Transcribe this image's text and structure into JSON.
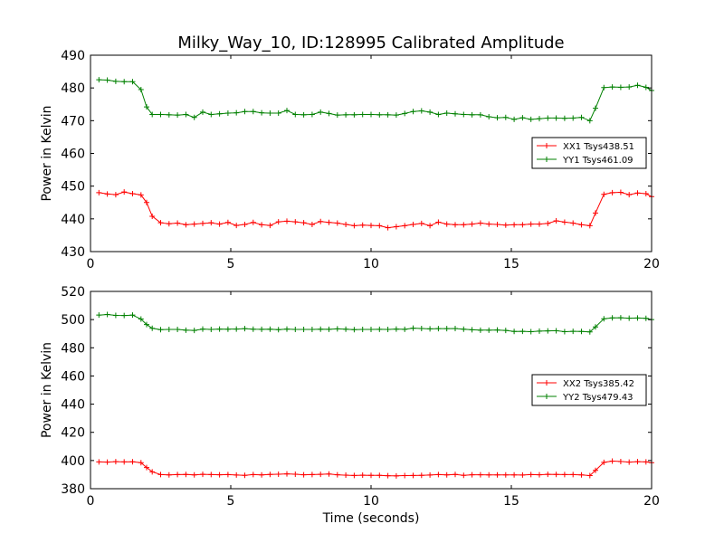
{
  "title": "Milky_Way_10, ID:128995 Calibrated Amplitude",
  "chart_data": [
    {
      "type": "line",
      "title": "Milky_Way_10, ID:128995 Calibrated Amplitude",
      "xlabel": "",
      "ylabel": "Power in Kelvin",
      "xlim": [
        0,
        20
      ],
      "ylim": [
        430,
        490
      ],
      "xticks": [
        "0",
        "5",
        "10",
        "15",
        "20"
      ],
      "yticks": [
        "430",
        "440",
        "450",
        "460",
        "470",
        "480",
        "490"
      ],
      "legend_position": "center-right",
      "grid": false,
      "series": [
        {
          "name": "XX1 Tsys438.51",
          "color": "#ff0000",
          "x": [
            0.3,
            0.6,
            0.9,
            1.2,
            1.5,
            1.8,
            2.0,
            2.2,
            2.5,
            2.8,
            3.1,
            3.4,
            3.7,
            4.0,
            4.3,
            4.6,
            4.9,
            5.2,
            5.5,
            5.8,
            6.1,
            6.4,
            6.7,
            7.0,
            7.3,
            7.6,
            7.9,
            8.2,
            8.5,
            8.8,
            9.1,
            9.4,
            9.7,
            10.0,
            10.3,
            10.6,
            10.9,
            11.2,
            11.5,
            11.8,
            12.1,
            12.4,
            12.7,
            13.0,
            13.3,
            13.6,
            13.9,
            14.2,
            14.5,
            14.8,
            15.1,
            15.4,
            15.7,
            16.0,
            16.3,
            16.6,
            16.9,
            17.2,
            17.5,
            17.8,
            18.0,
            18.3,
            18.6,
            18.9,
            19.2,
            19.5,
            19.8,
            20.0
          ],
          "y": [
            448.0,
            447.6,
            447.4,
            448.2,
            447.7,
            447.3,
            445.0,
            440.8,
            438.8,
            438.5,
            438.7,
            438.2,
            438.4,
            438.6,
            438.8,
            438.4,
            438.9,
            438.0,
            438.3,
            438.9,
            438.2,
            438.0,
            439.1,
            439.3,
            439.1,
            438.8,
            438.3,
            439.2,
            438.9,
            438.7,
            438.3,
            437.9,
            438.1,
            438.0,
            437.9,
            437.3,
            437.6,
            437.9,
            438.3,
            438.6,
            437.9,
            439.0,
            438.4,
            438.2,
            438.2,
            438.4,
            438.7,
            438.4,
            438.3,
            438.1,
            438.2,
            438.2,
            438.4,
            438.4,
            438.6,
            439.4,
            439.0,
            438.7,
            438.2,
            437.9,
            441.8,
            447.5,
            448.0,
            448.1,
            447.4,
            447.9,
            447.7,
            446.8
          ]
        },
        {
          "name": "YY1 Tsys461.09",
          "color": "#008000",
          "x": [
            0.3,
            0.6,
            0.9,
            1.2,
            1.5,
            1.8,
            2.0,
            2.2,
            2.5,
            2.8,
            3.1,
            3.4,
            3.7,
            4.0,
            4.3,
            4.6,
            4.9,
            5.2,
            5.5,
            5.8,
            6.1,
            6.4,
            6.7,
            7.0,
            7.3,
            7.6,
            7.9,
            8.2,
            8.5,
            8.8,
            9.1,
            9.4,
            9.7,
            10.0,
            10.3,
            10.6,
            10.9,
            11.2,
            11.5,
            11.8,
            12.1,
            12.4,
            12.7,
            13.0,
            13.3,
            13.6,
            13.9,
            14.2,
            14.5,
            14.8,
            15.1,
            15.4,
            15.7,
            16.0,
            16.3,
            16.6,
            16.9,
            17.2,
            17.5,
            17.8,
            18.0,
            18.3,
            18.6,
            18.9,
            19.2,
            19.5,
            19.8,
            20.0
          ],
          "y": [
            482.5,
            482.4,
            482.0,
            481.9,
            481.9,
            479.5,
            474.2,
            471.9,
            471.9,
            471.8,
            471.7,
            471.9,
            471.0,
            472.6,
            471.9,
            472.1,
            472.3,
            472.4,
            472.8,
            472.8,
            472.4,
            472.3,
            472.3,
            473.1,
            471.9,
            471.8,
            471.9,
            472.6,
            472.2,
            471.7,
            471.8,
            471.8,
            471.9,
            471.9,
            471.8,
            471.8,
            471.7,
            472.2,
            472.8,
            473.0,
            472.6,
            471.9,
            472.3,
            472.1,
            471.9,
            471.8,
            471.8,
            471.2,
            470.9,
            471.0,
            470.4,
            470.9,
            470.4,
            470.6,
            470.8,
            470.8,
            470.7,
            470.8,
            471.0,
            470.0,
            473.8,
            480.1,
            480.3,
            480.2,
            480.3,
            480.8,
            480.2,
            479.2
          ]
        }
      ]
    },
    {
      "type": "line",
      "title": "",
      "xlabel": "Time (seconds)",
      "ylabel": "Power in Kelvin",
      "xlim": [
        0,
        20
      ],
      "ylim": [
        380,
        520
      ],
      "xticks": [
        "0",
        "5",
        "10",
        "15",
        "20"
      ],
      "yticks": [
        "380",
        "400",
        "420",
        "440",
        "460",
        "480",
        "500",
        "520"
      ],
      "legend_position": "center-right",
      "grid": false,
      "series": [
        {
          "name": "XX2 Tsys385.42",
          "color": "#ff0000",
          "x": [
            0.3,
            0.6,
            0.9,
            1.2,
            1.5,
            1.8,
            2.0,
            2.2,
            2.5,
            2.8,
            3.1,
            3.4,
            3.7,
            4.0,
            4.3,
            4.6,
            4.9,
            5.2,
            5.5,
            5.8,
            6.1,
            6.4,
            6.7,
            7.0,
            7.3,
            7.6,
            7.9,
            8.2,
            8.5,
            8.8,
            9.1,
            9.4,
            9.7,
            10.0,
            10.3,
            10.6,
            10.9,
            11.2,
            11.5,
            11.8,
            12.1,
            12.4,
            12.7,
            13.0,
            13.3,
            13.6,
            13.9,
            14.2,
            14.5,
            14.8,
            15.1,
            15.4,
            15.7,
            16.0,
            16.3,
            16.6,
            16.9,
            17.2,
            17.5,
            17.8,
            18.0,
            18.3,
            18.6,
            18.9,
            19.2,
            19.5,
            19.8,
            20.0
          ],
          "y": [
            399.0,
            398.9,
            399.2,
            399.0,
            399.1,
            398.5,
            395.0,
            392.0,
            390.0,
            389.8,
            390.0,
            390.1,
            389.8,
            390.2,
            390.0,
            389.9,
            390.0,
            389.7,
            389.5,
            390.0,
            389.8,
            390.1,
            390.3,
            390.5,
            390.3,
            389.9,
            390.0,
            390.2,
            390.4,
            389.9,
            389.6,
            389.4,
            389.6,
            389.5,
            389.5,
            389.2,
            389.1,
            389.3,
            389.4,
            389.5,
            389.7,
            390.0,
            389.8,
            390.1,
            389.5,
            389.9,
            389.9,
            389.8,
            389.8,
            389.8,
            389.8,
            389.7,
            390.0,
            389.9,
            390.2,
            390.1,
            390.0,
            390.0,
            389.8,
            389.3,
            393.0,
            398.7,
            399.6,
            399.3,
            398.9,
            399.2,
            399.0,
            398.5
          ]
        },
        {
          "name": "YY2 Tsys479.43",
          "color": "#008000",
          "x": [
            0.3,
            0.6,
            0.9,
            1.2,
            1.5,
            1.8,
            2.0,
            2.2,
            2.5,
            2.8,
            3.1,
            3.4,
            3.7,
            4.0,
            4.3,
            4.6,
            4.9,
            5.2,
            5.5,
            5.8,
            6.1,
            6.4,
            6.7,
            7.0,
            7.3,
            7.6,
            7.9,
            8.2,
            8.5,
            8.8,
            9.1,
            9.4,
            9.7,
            10.0,
            10.3,
            10.6,
            10.9,
            11.2,
            11.5,
            11.8,
            12.1,
            12.4,
            12.7,
            13.0,
            13.3,
            13.6,
            13.9,
            14.2,
            14.5,
            14.8,
            15.1,
            15.4,
            15.7,
            16.0,
            16.3,
            16.6,
            16.9,
            17.2,
            17.5,
            17.8,
            18.0,
            18.3,
            18.6,
            18.9,
            19.2,
            19.5,
            19.8,
            20.0
          ],
          "y": [
            503.2,
            503.6,
            503.0,
            502.9,
            503.2,
            500.4,
            496.5,
            493.8,
            492.9,
            493.0,
            493.0,
            492.5,
            492.3,
            493.3,
            493.0,
            493.3,
            493.2,
            493.3,
            493.6,
            493.2,
            493.1,
            493.2,
            492.9,
            493.3,
            493.0,
            493.0,
            493.0,
            493.2,
            493.1,
            493.4,
            493.2,
            492.9,
            493.0,
            493.0,
            493.1,
            493.0,
            493.3,
            493.1,
            493.9,
            493.7,
            493.4,
            493.6,
            493.6,
            493.7,
            493.2,
            492.8,
            492.5,
            492.5,
            492.6,
            492.3,
            491.6,
            491.7,
            491.4,
            491.8,
            492.0,
            492.1,
            491.4,
            491.7,
            491.6,
            491.3,
            494.8,
            500.6,
            501.2,
            501.3,
            501.0,
            501.1,
            500.9,
            500.0
          ]
        }
      ]
    }
  ]
}
